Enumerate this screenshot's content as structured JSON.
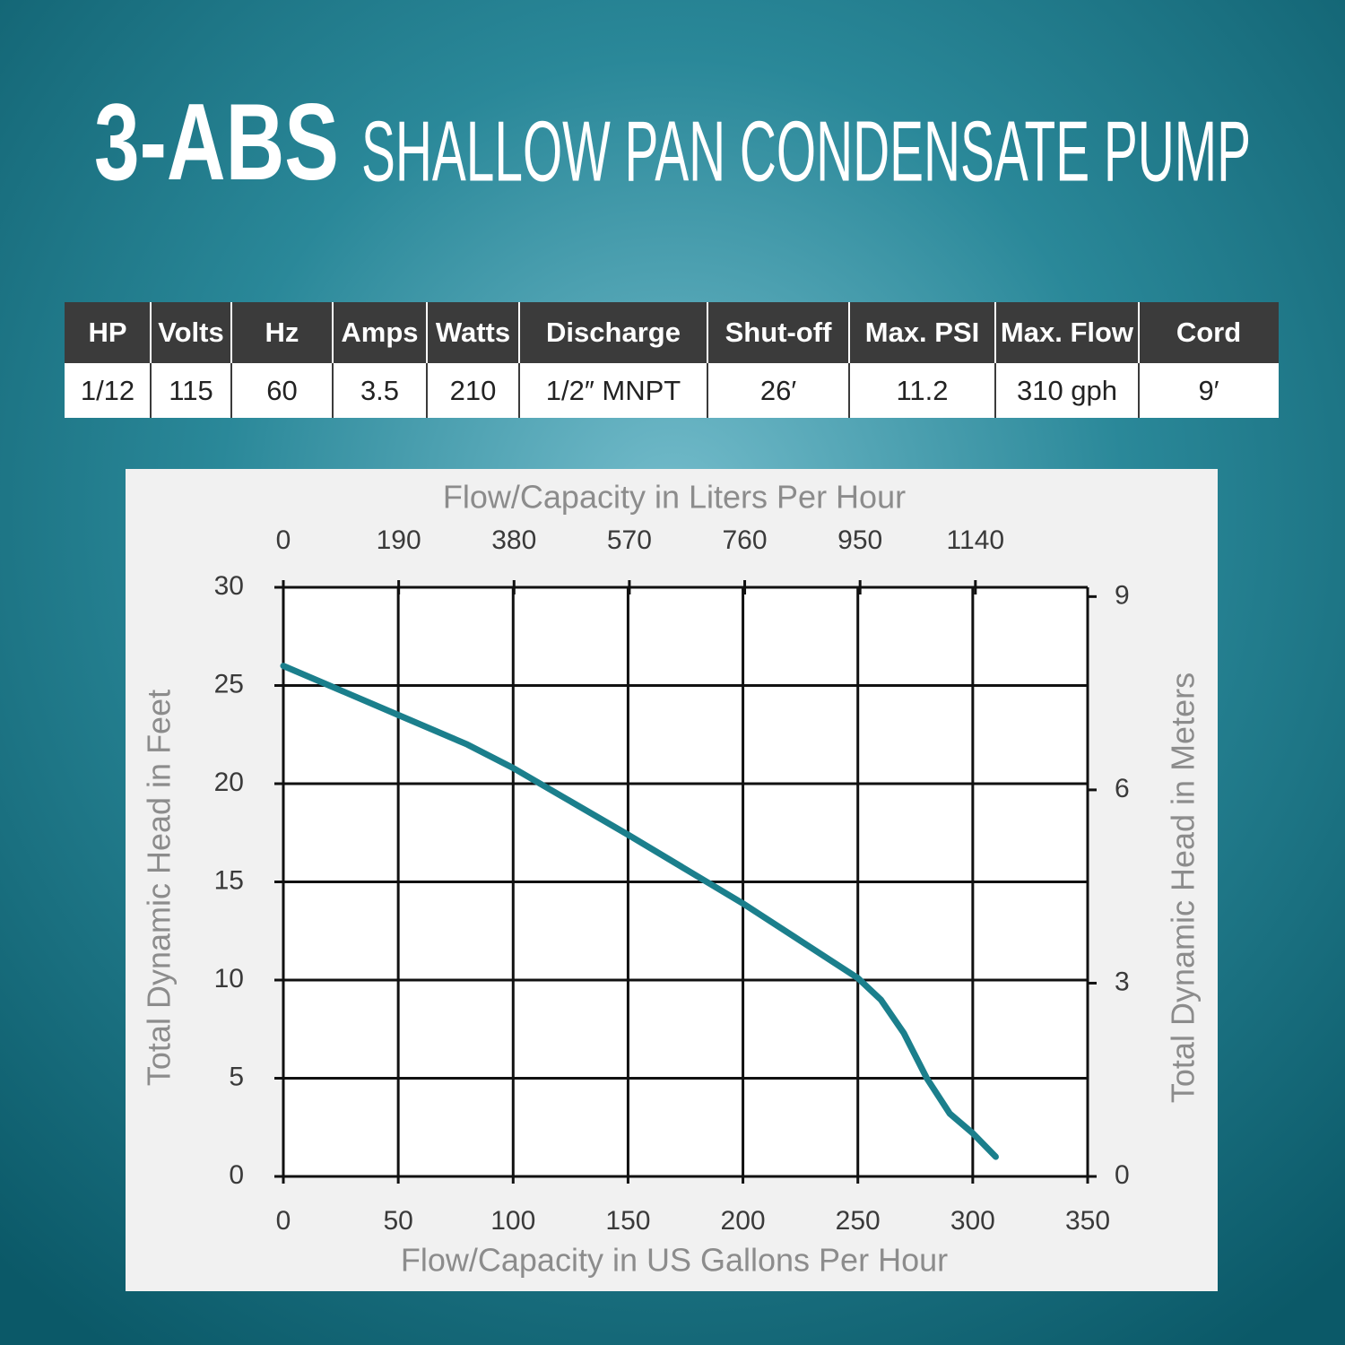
{
  "title": {
    "model": "3-ABS",
    "product": "SHALLOW PAN CONDENSATE PUMP"
  },
  "table": {
    "header": [
      "HP",
      "Volts",
      "Hz",
      "Amps",
      "Watts",
      "Discharge",
      "Shut-off",
      "Max. PSI",
      "Max. Flow",
      "Cord"
    ],
    "rows": [
      [
        "1/12",
        "115",
        "60",
        "3.5",
        "210",
        "1/2″ MNPT",
        "26′",
        "11.2",
        "310 gph",
        "9′"
      ]
    ]
  },
  "chart_data": {
    "type": "line",
    "xlabel": "Flow/Capacity in US Gallons Per Hour",
    "x2label": "Flow/Capacity in Liters Per Hour",
    "ylabel": "Total Dynamic Head in Feet",
    "y2label": "Total Dynamic Head in Meters",
    "x": [
      0,
      20,
      50,
      80,
      100,
      150,
      200,
      225,
      250,
      260,
      270,
      280,
      290,
      300,
      310
    ],
    "series": [
      {
        "color": "#1b7f8c",
        "values": [
          26,
          25,
          23.5,
          22,
          20.8,
          17.4,
          13.9,
          12,
          10.1,
          9,
          7.3,
          5,
          3.2,
          2.2,
          1
        ]
      }
    ],
    "xlim": [
      0,
      350
    ],
    "xticks": [
      0,
      50,
      100,
      150,
      200,
      250,
      300,
      350
    ],
    "x2lim": [
      0,
      1324.9
    ],
    "x2ticks": [
      0,
      190,
      380,
      570,
      760,
      950,
      1140
    ],
    "ylim": [
      0,
      30
    ],
    "yticks": [
      0,
      5,
      10,
      15,
      20,
      25,
      30
    ],
    "y2lim": [
      0,
      9.144
    ],
    "y2ticks": [
      0,
      3,
      6,
      9
    ],
    "grid": true
  }
}
